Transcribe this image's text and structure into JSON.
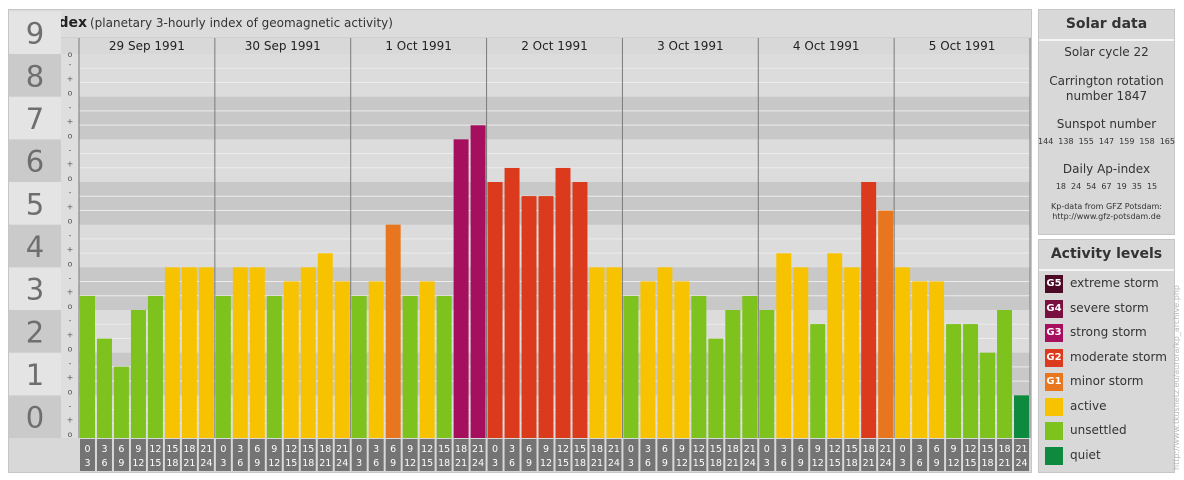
{
  "header": {
    "title": "Kp-index",
    "subtitle": "(planetary 3-hourly index of geomagnetic activity)"
  },
  "chart_data": {
    "type": "bar",
    "title": "Kp-index",
    "subtitle": "(planetary 3-hourly index of geomagnetic activity)",
    "ylim": [
      0,
      9
    ],
    "y_ticks": [
      "0",
      "1",
      "2",
      "3",
      "4",
      "5",
      "6",
      "7",
      "8",
      "9"
    ],
    "minor_tick_labels": [
      "o",
      "+",
      "-"
    ],
    "days": [
      "29 Sep 1991",
      "30 Sep 1991",
      "1 Oct 1991",
      "2 Oct 1991",
      "3 Oct 1991",
      "4 Oct 1991",
      "5 Oct 1991"
    ],
    "interval_labels": [
      [
        "0",
        "3"
      ],
      [
        "3",
        "6"
      ],
      [
        "6",
        "9"
      ],
      [
        "9",
        "12"
      ],
      [
        "12",
        "15"
      ],
      [
        "15",
        "18"
      ],
      [
        "18",
        "21"
      ],
      [
        "21",
        "24"
      ]
    ],
    "values": [
      [
        3.33,
        2.33,
        1.67,
        3.0,
        3.33,
        4.0,
        4.0,
        4.0
      ],
      [
        3.33,
        4.0,
        4.0,
        3.33,
        3.67,
        4.0,
        4.33,
        3.67
      ],
      [
        3.33,
        3.67,
        5.0,
        3.33,
        3.67,
        3.33,
        7.0,
        7.33
      ],
      [
        6.0,
        6.33,
        5.67,
        5.67,
        6.33,
        6.0,
        4.0,
        4.0
      ],
      [
        3.33,
        3.67,
        4.0,
        3.67,
        3.33,
        2.33,
        3.0,
        3.33
      ],
      [
        3.0,
        4.33,
        4.0,
        2.67,
        4.33,
        4.0,
        6.0,
        5.33
      ],
      [
        4.0,
        3.67,
        3.67,
        2.67,
        2.67,
        2.0,
        3.0,
        1.0
      ]
    ],
    "grid": true,
    "legend_position": "right"
  },
  "solar": {
    "title": "Solar data",
    "cycle": "Solar cycle 22",
    "carrington_line1": "Carrington rotation",
    "carrington_line2": "number 1847",
    "sunspot_label": "Sunspot number",
    "sunspot_values": [
      "144",
      "138",
      "155",
      "147",
      "159",
      "158",
      "165"
    ],
    "ap_label": "Daily Ap-index",
    "ap_values": [
      "18",
      "24",
      "54",
      "67",
      "19",
      "35",
      "15"
    ],
    "source_line1": "Kp-data from GFZ Potsdam:",
    "source_line2": "http://www.gfz-potsdam.de"
  },
  "levels": {
    "title": "Activity levels",
    "items": [
      {
        "code": "G5",
        "label": "extreme storm",
        "color": "#4c0a26"
      },
      {
        "code": "G4",
        "label": "severe storm",
        "color": "#7a1040"
      },
      {
        "code": "G3",
        "label": "strong storm",
        "color": "#a50f5e"
      },
      {
        "code": "G2",
        "label": "moderate storm",
        "color": "#db3a1c"
      },
      {
        "code": "G1",
        "label": "minor storm",
        "color": "#e8761f"
      },
      {
        "code": "",
        "label": "active",
        "color": "#f7c300"
      },
      {
        "code": "",
        "label": "unsettled",
        "color": "#7dc21d"
      },
      {
        "code": "",
        "label": "quiet",
        "color": "#0e8a3e"
      }
    ]
  },
  "watermark": "http://www.tkusnetz.eu/aurora/kp_archive.php"
}
